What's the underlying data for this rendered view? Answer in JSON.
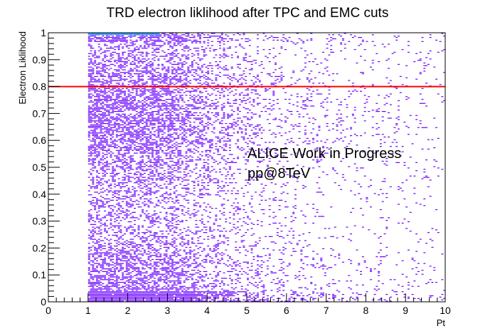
{
  "chart_data": {
    "type": "heatmap",
    "title": "TRD electron liklihood after TPC and EMC cuts",
    "xlabel": "Pt",
    "ylabel": "Electron Liklihood",
    "xlim": [
      0,
      10
    ],
    "ylim": [
      0,
      1
    ],
    "x_ticks": [
      "0",
      "1",
      "2",
      "3",
      "4",
      "5",
      "6",
      "7",
      "8",
      "9",
      "10"
    ],
    "y_ticks": [
      "0",
      "0.1",
      "0.2",
      "0.3",
      "0.4",
      "0.5",
      "0.6",
      "0.7",
      "0.8",
      "0.9",
      "1"
    ],
    "populated_x_range": [
      1,
      10
    ],
    "bin_color": "#6a00ff",
    "high_count_color": "#2aa0ff",
    "cut_line": {
      "y": 0.8,
      "color": "#ff0000"
    },
    "annotations": [
      "ALICE Work in Progress",
      "pp@8TeV"
    ],
    "grid": false
  }
}
